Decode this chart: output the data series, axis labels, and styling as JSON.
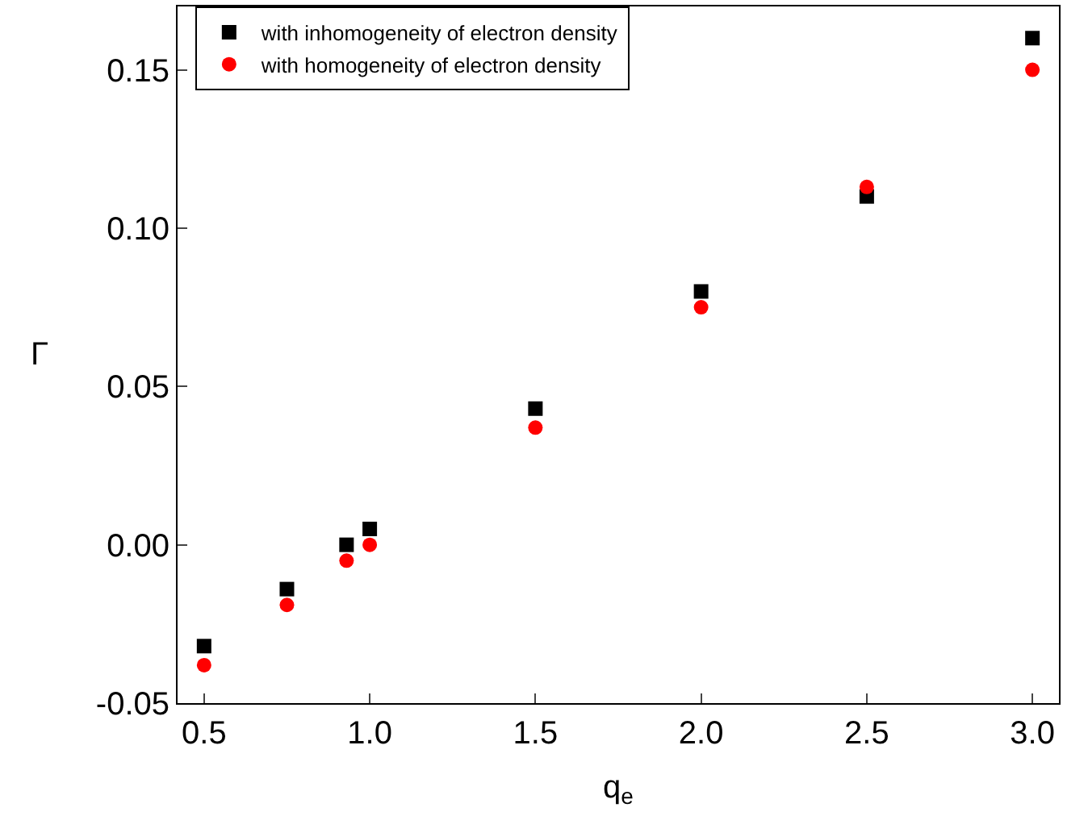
{
  "chart_data": {
    "type": "scatter",
    "xlabel": "q$_{e}$",
    "ylabel": "Γ",
    "xlim": [
      0.42,
      3.08
    ],
    "ylim": [
      -0.05,
      0.17
    ],
    "xticks": [
      {
        "value": 0.5,
        "label": "0.5"
      },
      {
        "value": 1.0,
        "label": "1.0"
      },
      {
        "value": 1.5,
        "label": "1.5"
      },
      {
        "value": 2.0,
        "label": "2.0"
      },
      {
        "value": 2.5,
        "label": "2.5"
      },
      {
        "value": 3.0,
        "label": "3.0"
      }
    ],
    "yticks": [
      {
        "value": -0.05,
        "label": "-0.05"
      },
      {
        "value": 0.0,
        "label": "0.00"
      },
      {
        "value": 0.05,
        "label": "0.05"
      },
      {
        "value": 0.1,
        "label": "0.10"
      },
      {
        "value": 0.15,
        "label": "0.15"
      }
    ],
    "x": [
      0.5,
      0.75,
      0.93,
      1.0,
      1.5,
      2.0,
      2.5,
      3.0
    ],
    "legend": "top left",
    "series": [
      {
        "name": "with inhomogeneity of electron density",
        "color": "#000000",
        "marker": "square",
        "values": [
          -0.032,
          -0.014,
          0.0,
          0.005,
          0.043,
          0.08,
          0.11,
          0.16
        ]
      },
      {
        "name": "with homogeneity of electron density",
        "color": "#ff0000",
        "marker": "circle",
        "values": [
          -0.038,
          -0.019,
          -0.005,
          0.0,
          0.037,
          0.075,
          0.113,
          0.15
        ]
      }
    ]
  }
}
